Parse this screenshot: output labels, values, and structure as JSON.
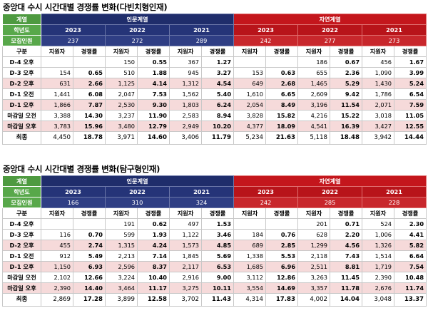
{
  "tables": [
    {
      "title": "중앙대 수시 시간대별 경쟁률 변화(다빈치형인재)",
      "row_labels": {
        "group": "계열",
        "year": "학년도",
        "quota": "모집인원",
        "col": "구분"
      },
      "groups": [
        {
          "name": "인문계열",
          "years": [
            "2023",
            "2022",
            "2021"
          ],
          "quotas": [
            "237",
            "272",
            "289"
          ]
        },
        {
          "name": "자연계열",
          "years": [
            "2023",
            "2022",
            "2021"
          ],
          "quotas": [
            "242",
            "277",
            "273"
          ]
        }
      ],
      "col_labels": {
        "applicants": "지원자",
        "rate": "경쟁률"
      },
      "rows": [
        {
          "label": "D-4 오후",
          "tone": "w",
          "cells": [
            "",
            "",
            "150",
            "0.55",
            "367",
            "1.27",
            "",
            "",
            "186",
            "0.67",
            "456",
            "1.67"
          ]
        },
        {
          "label": "D-3 오후",
          "tone": "w",
          "cells": [
            "154",
            "0.65",
            "510",
            "1.88",
            "945",
            "3.27",
            "153",
            "0.63",
            "655",
            "2.36",
            "1,090",
            "3.99"
          ]
        },
        {
          "label": "D-2 오후",
          "tone": "p",
          "cells": [
            "631",
            "2.66",
            "1,125",
            "4.14",
            "1,312",
            "4.54",
            "649",
            "2.68",
            "1,465",
            "5.29",
            "1,430",
            "5.24"
          ]
        },
        {
          "label": "D-1 오전",
          "tone": "w",
          "cells": [
            "1,441",
            "6.08",
            "2,047",
            "7.53",
            "1,562",
            "5.40",
            "1,610",
            "6.65",
            "2,609",
            "9.42",
            "1,786",
            "6.54"
          ]
        },
        {
          "label": "D-1 오후",
          "tone": "p",
          "cells": [
            "1,866",
            "7.87",
            "2,530",
            "9.30",
            "1,803",
            "6.24",
            "2,054",
            "8.49",
            "3,196",
            "11.54",
            "2,071",
            "7.59"
          ]
        },
        {
          "label": "마감일 오전",
          "tone": "w",
          "cells": [
            "3,388",
            "14.30",
            "3,237",
            "11.90",
            "2,583",
            "8.94",
            "3,828",
            "15.82",
            "4,216",
            "15.22",
            "3,018",
            "11.05"
          ]
        },
        {
          "label": "마감일 오후",
          "tone": "p",
          "cells": [
            "3,783",
            "15.96",
            "3,480",
            "12.79",
            "2,949",
            "10.20",
            "4,377",
            "18.09",
            "4,541",
            "16.39",
            "3,427",
            "12.55"
          ]
        },
        {
          "label": "최종",
          "tone": "fin",
          "cells": [
            "4,450",
            "18.78",
            "3,971",
            "14.60",
            "3,406",
            "11.79",
            "5,234",
            "21.63",
            "5,118",
            "18.48",
            "3,942",
            "14.44"
          ]
        }
      ]
    },
    {
      "title": "중앙대 수시 시간대별 경쟁률 변화(탐구형인재)",
      "row_labels": {
        "group": "계열",
        "year": "학년도",
        "quota": "모집인원",
        "col": "구분"
      },
      "groups": [
        {
          "name": "인문계열",
          "years": [
            "2023",
            "2022",
            "2021"
          ],
          "quotas": [
            "166",
            "310",
            "324"
          ]
        },
        {
          "name": "자연계열",
          "years": [
            "2023",
            "2022",
            "2021"
          ],
          "quotas": [
            "242",
            "285",
            "228"
          ]
        }
      ],
      "col_labels": {
        "applicants": "지원자",
        "rate": "경쟁률"
      },
      "rows": [
        {
          "label": "D-4 오후",
          "tone": "w",
          "cells": [
            "",
            "",
            "191",
            "0.62",
            "497",
            "1.53",
            "",
            "",
            "201",
            "0.71",
            "524",
            "2.30"
          ]
        },
        {
          "label": "D-3 오후",
          "tone": "w",
          "cells": [
            "116",
            "0.70",
            "599",
            "1.93",
            "1,122",
            "3.46",
            "184",
            "0.76",
            "628",
            "2.20",
            "1,006",
            "4.41"
          ]
        },
        {
          "label": "D-2 오후",
          "tone": "p",
          "cells": [
            "455",
            "2.74",
            "1,315",
            "4.24",
            "1,573",
            "4.85",
            "689",
            "2.85",
            "1,299",
            "4.56",
            "1,326",
            "5.82"
          ]
        },
        {
          "label": "D-1 오전",
          "tone": "w",
          "cells": [
            "912",
            "5.49",
            "2,213",
            "7.14",
            "1,845",
            "5.69",
            "1,338",
            "5.53",
            "2,118",
            "7.43",
            "1,514",
            "6.64"
          ]
        },
        {
          "label": "D-1 오후",
          "tone": "p",
          "cells": [
            "1,150",
            "6.93",
            "2,596",
            "8.37",
            "2,117",
            "6.53",
            "1,685",
            "6.96",
            "2,511",
            "8.81",
            "1,719",
            "7.54"
          ]
        },
        {
          "label": "마감일 오전",
          "tone": "w",
          "cells": [
            "2,102",
            "12.66",
            "3,224",
            "10.40",
            "2,916",
            "9.00",
            "3,112",
            "12.86",
            "3,263",
            "11.45",
            "2,390",
            "10.48"
          ]
        },
        {
          "label": "마감일 오후",
          "tone": "p",
          "cells": [
            "2,390",
            "14.40",
            "3,464",
            "11.17",
            "3,275",
            "10.11",
            "3,554",
            "14.69",
            "3,357",
            "11.78",
            "2,676",
            "11.74"
          ]
        },
        {
          "label": "최종",
          "tone": "fin",
          "cells": [
            "2,869",
            "17.28",
            "3,899",
            "12.58",
            "3,702",
            "11.43",
            "4,314",
            "17.83",
            "4,002",
            "14.04",
            "3,048",
            "13.37"
          ]
        }
      ]
    }
  ]
}
